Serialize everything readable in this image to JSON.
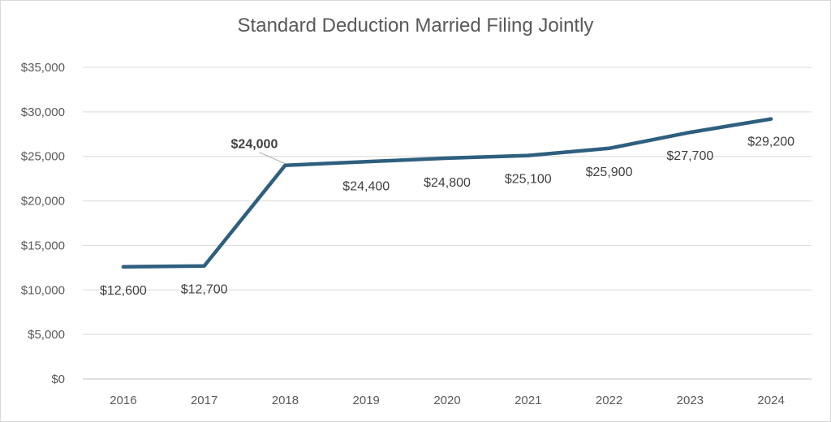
{
  "chart_data": {
    "type": "line",
    "title": "Standard Deduction Married Filing Jointly",
    "xlabel": "",
    "ylabel": "",
    "ylim": [
      0,
      35000
    ],
    "y_ticks": [
      "$0",
      "$5,000",
      "$10,000",
      "$15,000",
      "$20,000",
      "$25,000",
      "$30,000",
      "$35,000"
    ],
    "grid": true,
    "legend": "none",
    "categories": [
      "2016",
      "2017",
      "2018",
      "2019",
      "2020",
      "2021",
      "2022",
      "2023",
      "2024"
    ],
    "series": [
      {
        "values": [
          12600,
          12700,
          24000,
          24400,
          24800,
          25100,
          25900,
          27700,
          29200
        ],
        "data_labels": [
          "$12,600",
          "$12,700",
          "$24,000",
          "$24,400",
          "$24,800",
          "$25,100",
          "$25,900",
          "$27,700",
          "$29,200"
        ],
        "color": "#2f5f7f"
      }
    ]
  }
}
